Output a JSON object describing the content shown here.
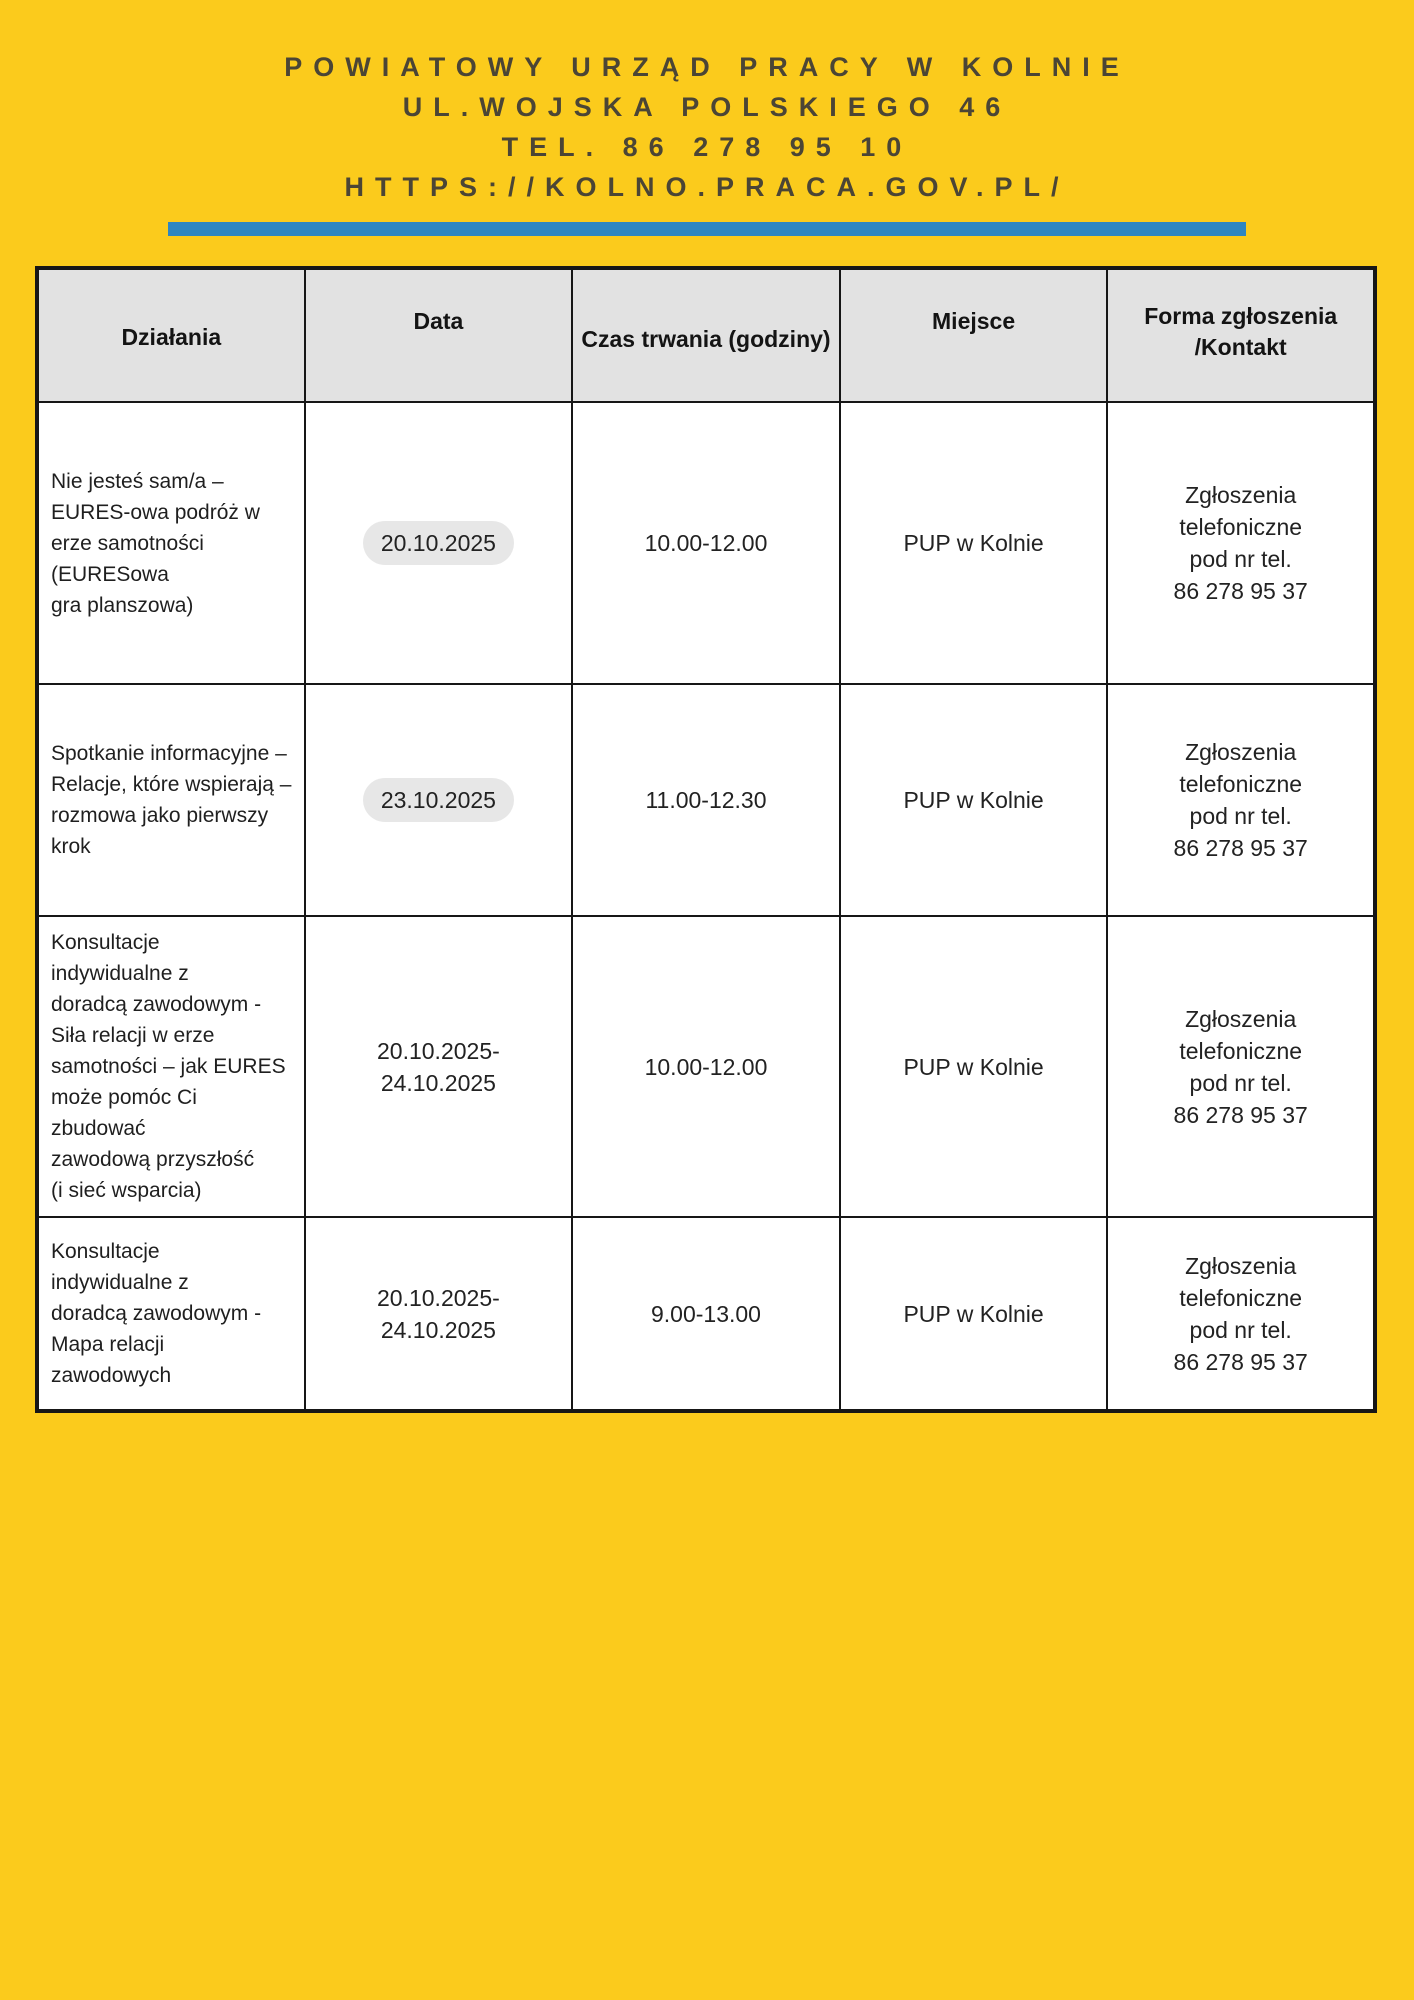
{
  "page": {
    "background": "#fbcb1c"
  },
  "header": {
    "line1": "POWIATOWY URZĄD PRACY W KOLNIE",
    "line2": "UL.WOJSKA POLSKIEGO 46",
    "line3": "TEL. 86 278 95 10",
    "line4": "HTTPS://KOLNO.PRACA.GOV.PL/",
    "text_color": "#4b4535"
  },
  "divider": {
    "color": "#2e86c1"
  },
  "table": {
    "headers": {
      "activity": "Działania",
      "date": "Data",
      "duration": "Czas trwania (godziny)",
      "place": "Miejsce",
      "contact": "Forma zgłoszenia\n/Kontakt"
    },
    "rows": [
      {
        "activity": "Nie jesteś sam/a –\nEURES-owa podróż w\nerze samotności\n(EURESowa\ngra planszowa)",
        "date": "20.10.2025",
        "date_highlighted": true,
        "duration": "10.00-12.00",
        "place": "PUP w Kolnie",
        "contact": "Zgłoszenia\ntelefoniczne\npod nr tel.\n86 278 95 37"
      },
      {
        "activity": "Spotkanie informacyjne –\nRelacje, które wspierają –\nrozmowa jako pierwszy\nkrok",
        "date": "23.10.2025",
        "date_highlighted": true,
        "duration": "11.00-12.30",
        "place": "PUP w Kolnie",
        "contact": "Zgłoszenia\ntelefoniczne\npod nr tel.\n86 278 95 37"
      },
      {
        "activity": "Konsultacje\nindywidualne z\ndoradcą zawodowym -\nSiła relacji w erze\nsamotności – jak EURES\nmoże pomóc Ci\nzbudować\nzawodową przyszłość\n(i sieć wsparcia)",
        "date": "20.10.2025-\n24.10.2025",
        "date_highlighted": false,
        "duration": "10.00-12.00",
        "place": "PUP w Kolnie",
        "contact": "Zgłoszenia\ntelefoniczne\npod nr tel.\n86 278 95 37"
      },
      {
        "activity": "Konsultacje\nindywidualne z\ndoradcą zawodowym -\nMapa relacji\nzawodowych",
        "date": "20.10.2025-\n24.10.2025",
        "date_highlighted": false,
        "duration": "9.00-13.00",
        "place": "PUP w Kolnie",
        "contact": "Zgłoszenia\ntelefoniczne\npod nr tel.\n86 278 95 37"
      }
    ]
  }
}
